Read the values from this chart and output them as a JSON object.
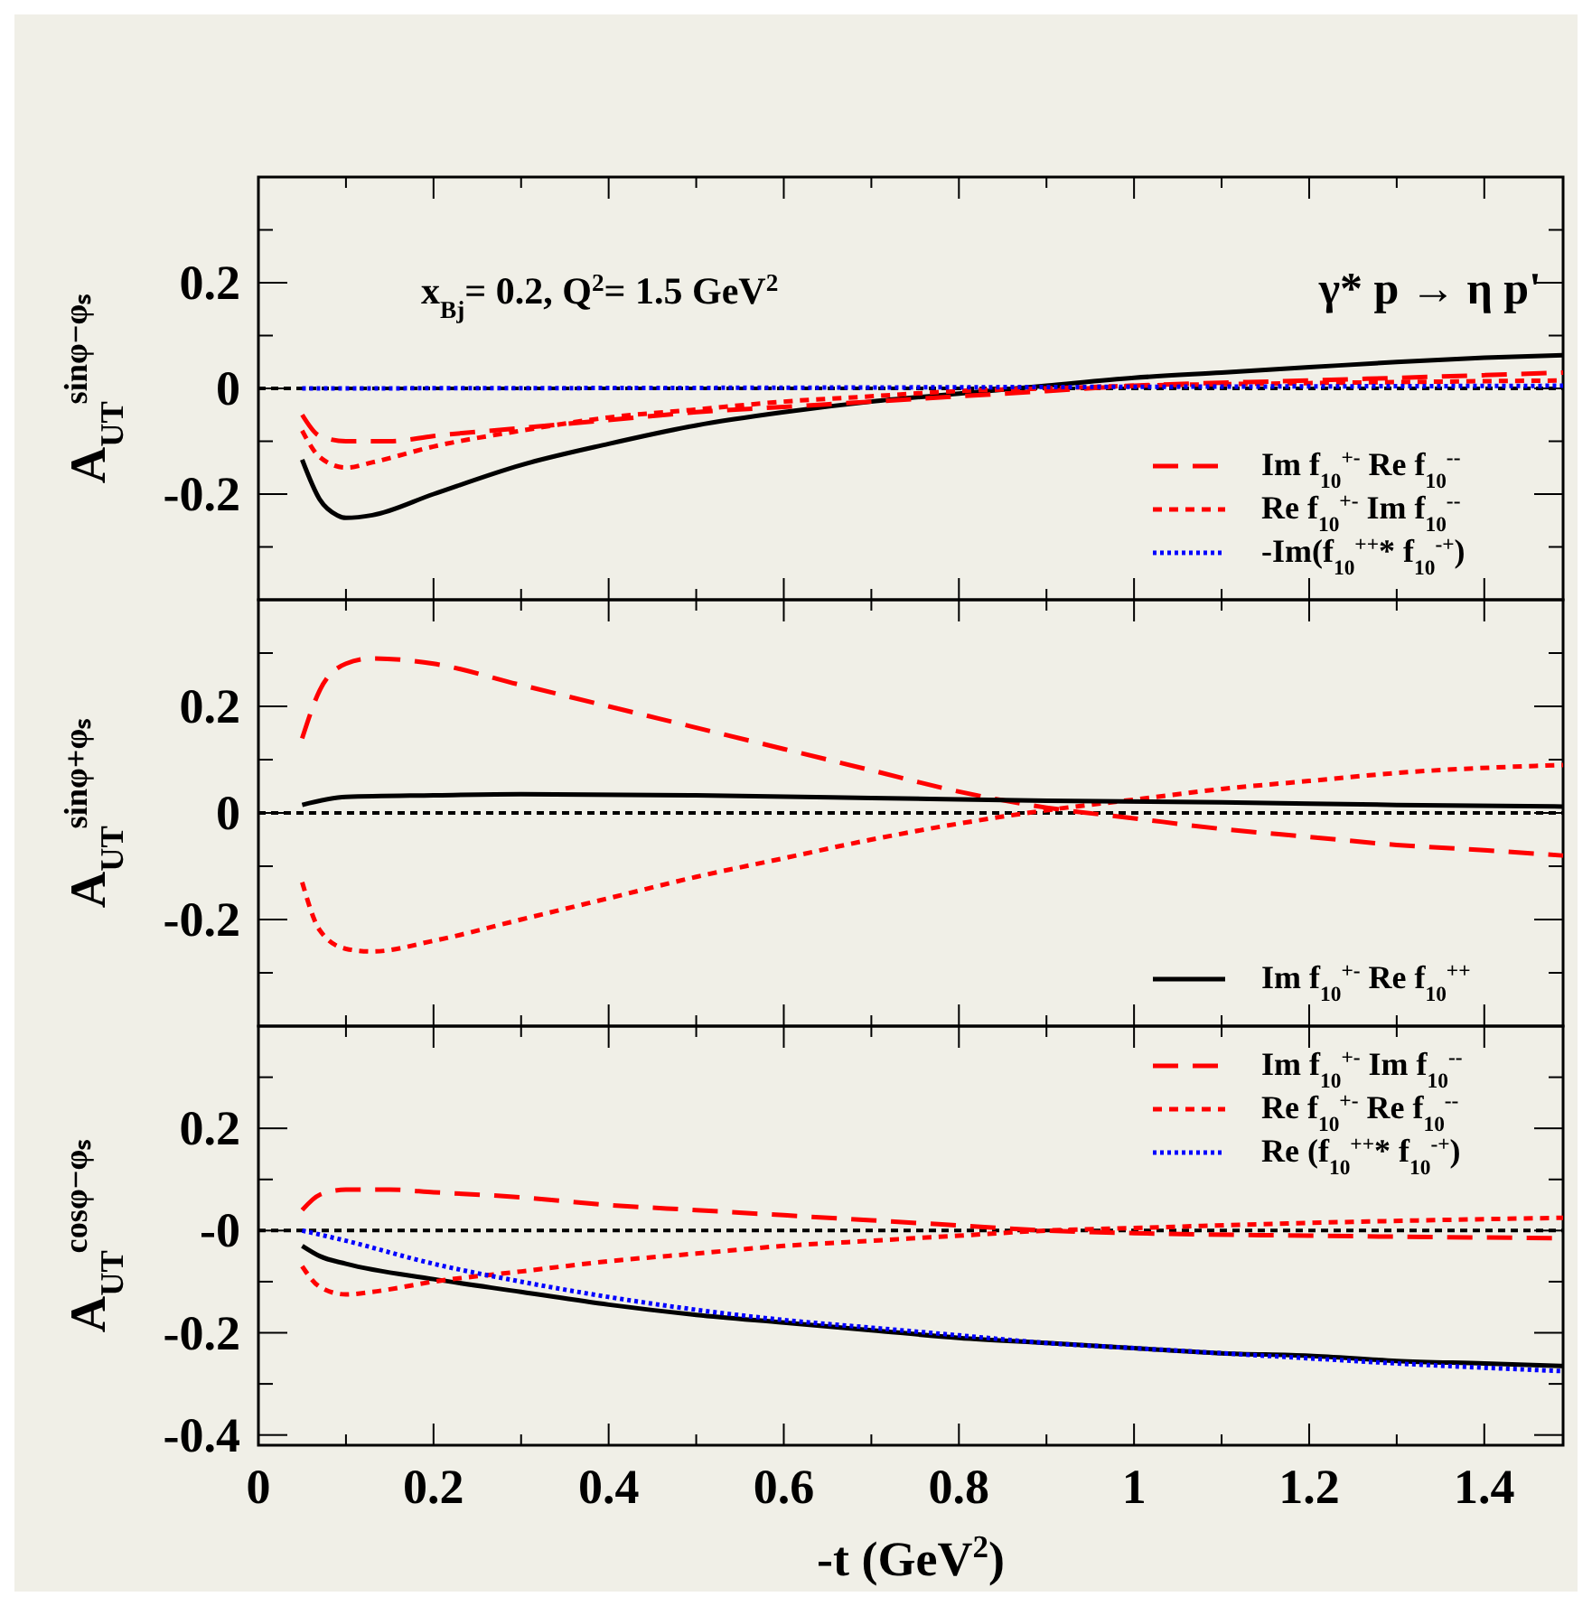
{
  "chart_data": [
    {
      "type": "line",
      "ylabel": "A$_{UT}$$^{sinφ−φₛ}$",
      "xlim": [
        0,
        1.49
      ],
      "ylim": [
        -0.4,
        0.4
      ],
      "tick_labels": "y",
      "legend": "bottom right",
      "grid": false,
      "annotations": [
        "x$_{Bj}$= 0.2,  Q$^{2}$= 1.5 GeV$^{2}$",
        "γ* p → η p'"
      ],
      "xticks": [
        0,
        {
          "value": 0.1,
          "label": null
        },
        0.2,
        {
          "value": 0.3,
          "label": null
        },
        0.4,
        {
          "value": 0.5,
          "label": null
        },
        0.6,
        {
          "value": 0.7,
          "label": null
        },
        0.8,
        {
          "value": 0.9,
          "label": null
        },
        1,
        {
          "value": 1.1,
          "label": null
        },
        1.2,
        {
          "value": 1.3,
          "label": null
        },
        1.4
      ],
      "yticks": [
        {
          "value": -0.3,
          "label": null
        },
        -0.2,
        {
          "value": -0.1,
          "label": null
        },
        0,
        {
          "value": 0.1,
          "label": null
        },
        0.2,
        {
          "value": 0.3,
          "label": null
        }
      ],
      "ref_lines": [
        {
          "axis": "y",
          "value": 0,
          "color": "#000000",
          "line_style": "dashed"
        }
      ],
      "series": [
        {
          "color": "#000000",
          "line_style": "solid",
          "x": [
            0.05,
            0.07,
            0.09,
            0.1,
            0.13,
            0.2,
            0.3,
            0.4,
            0.5,
            0.6,
            0.7,
            0.8,
            0.9,
            1.0,
            1.1,
            1.2,
            1.3,
            1.4,
            1.49
          ],
          "values": [
            -0.135,
            -0.21,
            -0.24,
            -0.245,
            -0.24,
            -0.2,
            -0.145,
            -0.105,
            -0.07,
            -0.045,
            -0.025,
            -0.01,
            0.005,
            0.02,
            0.03,
            0.04,
            0.05,
            0.058,
            0.063
          ]
        },
        {
          "name": "Im f$_{10}$$^{+-}$ Re f$_{10}$$^{--}$",
          "color": "#ff0000",
          "line_style": "dashed",
          "x": [
            0.05,
            0.07,
            0.1,
            0.15,
            0.2,
            0.3,
            0.4,
            0.5,
            0.6,
            0.7,
            0.8,
            0.9,
            1.0,
            1.2,
            1.4,
            1.49
          ],
          "values": [
            -0.05,
            -0.09,
            -0.1,
            -0.1,
            -0.09,
            -0.075,
            -0.06,
            -0.045,
            -0.035,
            -0.025,
            -0.015,
            -0.005,
            0.005,
            0.015,
            0.025,
            0.03
          ]
        },
        {
          "name": "Re f$_{10}$$^{+-}$ Im f$_{10}$$^{--}$",
          "color": "#ff0000",
          "line_style": "dotted",
          "x": [
            0.05,
            0.07,
            0.1,
            0.13,
            0.2,
            0.3,
            0.4,
            0.5,
            0.6,
            0.7,
            0.8,
            0.9,
            1.0,
            1.2,
            1.49
          ],
          "values": [
            -0.08,
            -0.13,
            -0.15,
            -0.14,
            -0.11,
            -0.08,
            -0.055,
            -0.04,
            -0.025,
            -0.015,
            -0.005,
            0.0,
            0.005,
            0.01,
            0.015
          ]
        },
        {
          "name": "-Im(f$_{10}$$^{++}$* f$_{10}$$^{-+}$)",
          "color": "#0000ff",
          "line_style": "dotted",
          "x": [
            0.05,
            0.5,
            1.0,
            1.49
          ],
          "values": [
            0.0,
            0.001,
            0.003,
            0.005
          ]
        }
      ]
    },
    {
      "type": "line",
      "ylabel": "A$_{UT}$$^{sinφ+φₛ}$",
      "xlim": [
        0,
        1.49
      ],
      "ylim": [
        -0.4,
        0.4
      ],
      "tick_labels": "y",
      "legend": "bottom right",
      "grid": false,
      "xticks": [
        0,
        {
          "value": 0.1,
          "label": null
        },
        0.2,
        {
          "value": 0.3,
          "label": null
        },
        0.4,
        {
          "value": 0.5,
          "label": null
        },
        0.6,
        {
          "value": 0.7,
          "label": null
        },
        0.8,
        {
          "value": 0.9,
          "label": null
        },
        1,
        {
          "value": 1.1,
          "label": null
        },
        1.2,
        {
          "value": 1.3,
          "label": null
        },
        1.4
      ],
      "yticks": [
        {
          "value": -0.3,
          "label": null
        },
        -0.2,
        {
          "value": -0.1,
          "label": null
        },
        0,
        {
          "value": 0.1,
          "label": null
        },
        0.2,
        {
          "value": 0.3,
          "label": null
        }
      ],
      "ref_lines": [
        {
          "axis": "y",
          "value": 0,
          "color": "#000000",
          "line_style": "dashed"
        }
      ],
      "series": [
        {
          "color": "#ff0000",
          "line_style": "dashed",
          "x": [
            0.05,
            0.07,
            0.1,
            0.13,
            0.2,
            0.3,
            0.4,
            0.5,
            0.6,
            0.7,
            0.8,
            0.9,
            1.0,
            1.1,
            1.2,
            1.3,
            1.4,
            1.49
          ],
          "values": [
            0.14,
            0.23,
            0.28,
            0.29,
            0.28,
            0.24,
            0.2,
            0.16,
            0.12,
            0.08,
            0.04,
            0.01,
            -0.01,
            -0.03,
            -0.045,
            -0.06,
            -0.07,
            -0.08
          ]
        },
        {
          "color": "#ff0000",
          "line_style": "dotted",
          "x": [
            0.05,
            0.07,
            0.1,
            0.13,
            0.2,
            0.3,
            0.4,
            0.5,
            0.6,
            0.7,
            0.8,
            0.9,
            1.0,
            1.1,
            1.2,
            1.3,
            1.49
          ],
          "values": [
            -0.13,
            -0.22,
            -0.255,
            -0.26,
            -0.24,
            -0.2,
            -0.16,
            -0.12,
            -0.085,
            -0.05,
            -0.02,
            0.005,
            0.025,
            0.045,
            0.06,
            0.075,
            0.09
          ]
        },
        {
          "name": "Im f$_{10}$$^{+-}$ Re f$_{10}$$^{++}$",
          "color": "#000000",
          "line_style": "solid",
          "x": [
            0.05,
            0.1,
            0.2,
            0.3,
            0.5,
            0.7,
            0.9,
            1.1,
            1.3,
            1.49
          ],
          "values": [
            0.015,
            0.03,
            0.033,
            0.035,
            0.033,
            0.028,
            0.023,
            0.02,
            0.015,
            0.012
          ]
        }
      ]
    },
    {
      "type": "line",
      "ylabel": "A$_{UT}$$^{cosφ−φₛ}$",
      "xlabel": "-t (GeV$^{2}$)",
      "xlim": [
        0,
        1.49
      ],
      "ylim": [
        -0.42,
        0.4
      ],
      "legend": "top right",
      "grid": false,
      "xticks": [
        0,
        {
          "value": 0.1,
          "label": null
        },
        0.2,
        {
          "value": 0.3,
          "label": null
        },
        0.4,
        {
          "value": 0.5,
          "label": null
        },
        0.6,
        {
          "value": 0.7,
          "label": null
        },
        0.8,
        {
          "value": 0.9,
          "label": null
        },
        1,
        {
          "value": 1.1,
          "label": null
        },
        1.2,
        {
          "value": 1.3,
          "label": null
        },
        1.4
      ],
      "yticks": [
        -0.4,
        {
          "value": -0.3,
          "label": null
        },
        -0.2,
        {
          "value": -0.1,
          "label": null
        },
        {
          "value": 0,
          "label": "-0"
        },
        {
          "value": 0.1,
          "label": null
        },
        0.2,
        {
          "value": 0.3,
          "label": null
        }
      ],
      "ref_lines": [
        {
          "axis": "y",
          "value": 0,
          "color": "#000000",
          "line_style": "dashed"
        }
      ],
      "series": [
        {
          "color": "#000000",
          "line_style": "solid",
          "x": [
            0.05,
            0.07,
            0.1,
            0.2,
            0.3,
            0.4,
            0.5,
            0.6,
            0.7,
            0.8,
            0.9,
            1.0,
            1.1,
            1.2,
            1.3,
            1.4,
            1.49
          ],
          "values": [
            -0.03,
            -0.05,
            -0.065,
            -0.095,
            -0.12,
            -0.145,
            -0.165,
            -0.18,
            -0.195,
            -0.21,
            -0.22,
            -0.23,
            -0.24,
            -0.245,
            -0.255,
            -0.26,
            -0.265
          ]
        },
        {
          "name": "Im f$_{10}$$^{+-}$ Im f$_{10}$$^{--}$",
          "color": "#ff0000",
          "line_style": "dashed",
          "x": [
            0.05,
            0.07,
            0.1,
            0.15,
            0.2,
            0.3,
            0.4,
            0.5,
            0.6,
            0.7,
            0.8,
            0.9,
            1.0,
            1.2,
            1.49
          ],
          "values": [
            0.04,
            0.07,
            0.08,
            0.08,
            0.075,
            0.065,
            0.05,
            0.04,
            0.03,
            0.02,
            0.01,
            0.0,
            -0.005,
            -0.01,
            -0.015
          ]
        },
        {
          "name": "Re f$_{10}$$^{+-}$ Re f$_{10}$$^{--}$",
          "color": "#ff0000",
          "line_style": "dotted",
          "x": [
            0.05,
            0.07,
            0.1,
            0.13,
            0.2,
            0.3,
            0.4,
            0.5,
            0.6,
            0.7,
            0.8,
            0.9,
            1.0,
            1.2,
            1.49
          ],
          "values": [
            -0.07,
            -0.11,
            -0.125,
            -0.12,
            -0.1,
            -0.08,
            -0.06,
            -0.045,
            -0.03,
            -0.02,
            -0.01,
            0.0,
            0.005,
            0.015,
            0.025
          ]
        },
        {
          "name": "Re (f$_{10}$$^{++}$* f$_{10}$$^{-+}$)",
          "color": "#0000ff",
          "line_style": "dotted",
          "x": [
            0.05,
            0.1,
            0.2,
            0.3,
            0.4,
            0.5,
            0.6,
            0.7,
            0.8,
            0.9,
            1.0,
            1.1,
            1.2,
            1.3,
            1.49
          ],
          "values": [
            0.0,
            -0.02,
            -0.065,
            -0.1,
            -0.13,
            -0.155,
            -0.175,
            -0.19,
            -0.205,
            -0.22,
            -0.23,
            -0.24,
            -0.25,
            -0.26,
            -0.275
          ]
        }
      ]
    }
  ]
}
